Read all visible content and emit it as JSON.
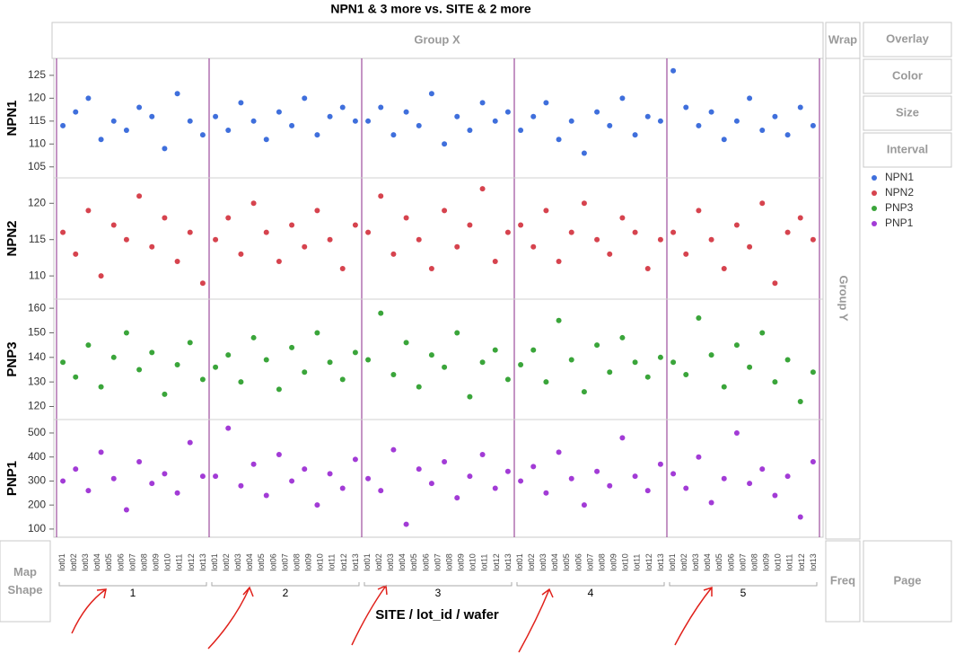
{
  "chart_data": {
    "type": "scatter",
    "title": "NPN1 & 3 more vs. SITE & 2 more",
    "x_label": "SITE / lot_id / wafer",
    "categories": [
      "1",
      "2",
      "3",
      "4",
      "5"
    ],
    "lot_labels": [
      "lot01",
      "lot02",
      "lot03",
      "lot04",
      "lot05",
      "lot06",
      "lot07",
      "lot08",
      "lot09",
      "lot10",
      "lot11",
      "lot12",
      "lot13"
    ],
    "controls": {
      "group_x": "Group X",
      "group_y": "Group Y",
      "wrap": "Wrap",
      "overlay": "Overlay",
      "color": "Color",
      "size": "Size",
      "interval": "Interval",
      "map_shape": "Map Shape",
      "freq": "Freq",
      "page": "Page"
    },
    "x": [
      1,
      1,
      1,
      1,
      1,
      1,
      1,
      1,
      1,
      1,
      1,
      1,
      2,
      2,
      2,
      2,
      2,
      2,
      2,
      2,
      2,
      2,
      2,
      2,
      3,
      3,
      3,
      3,
      3,
      3,
      3,
      3,
      3,
      3,
      3,
      3,
      4,
      4,
      4,
      4,
      4,
      4,
      4,
      4,
      4,
      4,
      4,
      4,
      5,
      5,
      5,
      5,
      5,
      5,
      5,
      5,
      5,
      5,
      5,
      5
    ],
    "series": [
      {
        "name": "NPN1",
        "color": "#3f6fdc",
        "ylim": [
          102.6,
          128.7
        ],
        "yticks": [
          105,
          110,
          115,
          120,
          125
        ],
        "values": [
          114,
          117,
          120,
          111,
          115,
          113,
          118,
          116,
          109,
          121,
          115,
          112,
          116,
          113,
          119,
          115,
          111,
          117,
          114,
          120,
          112,
          116,
          118,
          115,
          115,
          118,
          112,
          117,
          114,
          121,
          110,
          116,
          113,
          119,
          115,
          117,
          113,
          116,
          119,
          111,
          115,
          108,
          117,
          114,
          120,
          112,
          116,
          115,
          126,
          118,
          114,
          117,
          111,
          115,
          120,
          113,
          116,
          112,
          118,
          114
        ]
      },
      {
        "name": "NPN2",
        "color": "#d6434e",
        "ylim": [
          106.8,
          123.5
        ],
        "yticks": [
          110,
          115,
          120
        ],
        "values": [
          116,
          113,
          119,
          110,
          117,
          115,
          121,
          114,
          118,
          112,
          116,
          109,
          115,
          118,
          113,
          120,
          116,
          112,
          117,
          114,
          119,
          115,
          111,
          117,
          116,
          121,
          113,
          118,
          115,
          111,
          119,
          114,
          117,
          122,
          112,
          116,
          117,
          114,
          119,
          112,
          116,
          120,
          115,
          113,
          118,
          116,
          111,
          115,
          116,
          113,
          119,
          115,
          111,
          117,
          114,
          120,
          109,
          116,
          118,
          115
        ]
      },
      {
        "name": "PNP3",
        "color": "#3aa53a",
        "ylim": [
          114.7,
          163.7
        ],
        "yticks": [
          120,
          130,
          140,
          150,
          160
        ],
        "values": [
          138,
          132,
          145,
          128,
          140,
          150,
          135,
          142,
          125,
          137,
          146,
          131,
          136,
          141,
          130,
          148,
          139,
          127,
          144,
          134,
          150,
          138,
          131,
          142,
          139,
          158,
          133,
          146,
          128,
          141,
          136,
          150,
          124,
          138,
          143,
          131,
          137,
          143,
          130,
          155,
          139,
          126,
          145,
          134,
          148,
          138,
          132,
          140,
          138,
          133,
          156,
          141,
          128,
          145,
          136,
          150,
          130,
          139,
          122,
          134
        ]
      },
      {
        "name": "PNP1",
        "color": "#a23bd6",
        "ylim": [
          66,
          556
        ],
        "yticks": [
          100,
          200,
          300,
          400,
          500
        ],
        "values": [
          300,
          350,
          260,
          420,
          310,
          180,
          380,
          290,
          330,
          250,
          460,
          320,
          320,
          520,
          280,
          370,
          240,
          410,
          300,
          350,
          200,
          330,
          270,
          390,
          310,
          260,
          430,
          120,
          350,
          290,
          380,
          230,
          320,
          410,
          270,
          340,
          300,
          360,
          250,
          420,
          310,
          200,
          340,
          280,
          480,
          320,
          260,
          370,
          330,
          270,
          400,
          210,
          310,
          500,
          290,
          350,
          240,
          320,
          150,
          380
        ]
      }
    ]
  }
}
